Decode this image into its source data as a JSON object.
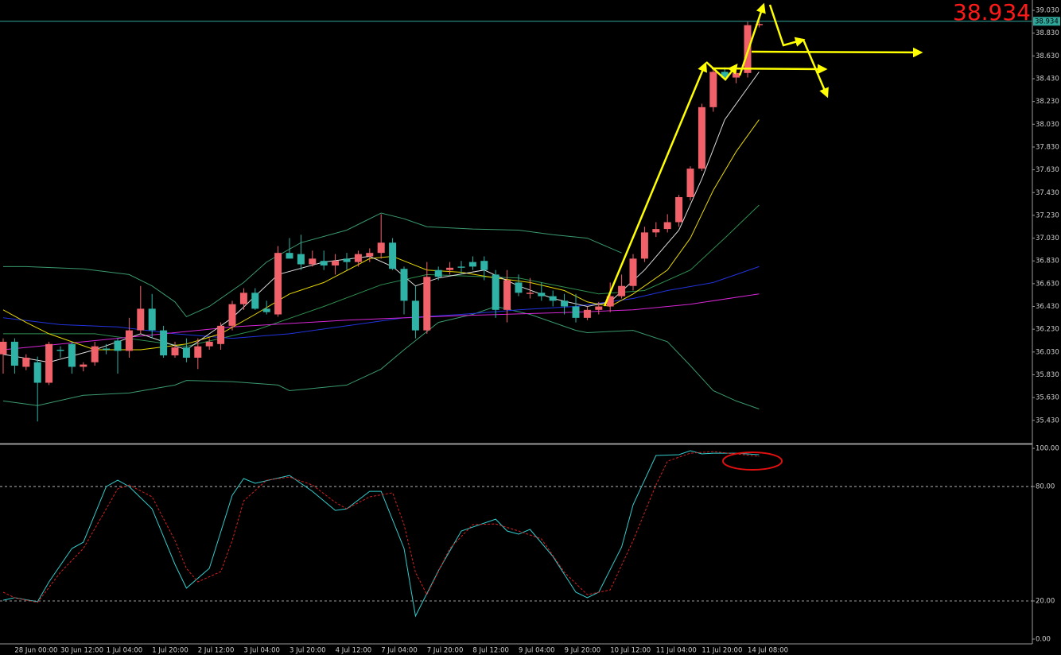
{
  "chart_data": [
    {
      "type": "candlestick",
      "categories": [
        null,
        "28 Jun 00:00",
        null,
        null,
        null,
        "30 Jun 12:00",
        null,
        null,
        null,
        "1 Jul 04:00",
        null,
        null,
        null,
        "1 Jul 20:00",
        null,
        null,
        null,
        "2 Jul 12:00",
        null,
        null,
        null,
        "3 Jul 04:00",
        null,
        null,
        null,
        "3 Jul 20:00",
        null,
        null,
        null,
        "4 Jul 12:00",
        null,
        null,
        null,
        "7 Jul 04:00",
        null,
        null,
        null,
        "7 Jul 20:00",
        null,
        null,
        null,
        "8 Jul 12:00",
        null,
        null,
        null,
        "9 Jul 04:00",
        null,
        null,
        null,
        "9 Jul 20:00",
        null,
        null,
        null,
        "10 Jul 12:00",
        null,
        null,
        null,
        "11 Jul 04:00",
        null,
        null,
        null,
        "11 Jul 20:00",
        null,
        null,
        null,
        "14 Jul 08:00",
        null
      ],
      "open": [
        36.01,
        36.12,
        35.9,
        35.94,
        35.76,
        36.05,
        36.1,
        35.9,
        35.94,
        36.06,
        36.13,
        36.04,
        36.22,
        36.41,
        36.22,
        36.0,
        36.07,
        35.98,
        36.08,
        36.1,
        36.26,
        36.45,
        36.55,
        36.41,
        36.36,
        36.9,
        36.89,
        36.8,
        36.83,
        36.79,
        36.85,
        36.82,
        36.87,
        36.9,
        36.99,
        36.76,
        36.48,
        36.22,
        36.75,
        36.75,
        36.78,
        36.82,
        36.83,
        36.71,
        36.4,
        36.64,
        36.54,
        36.55,
        36.52,
        36.48,
        36.43,
        36.33,
        36.4,
        36.43,
        36.52,
        36.61,
        36.85,
        37.08,
        37.11,
        37.17,
        37.39,
        37.64,
        38.18,
        38.49,
        38.44,
        38.48,
        38.9
      ],
      "high": [
        36.15,
        36.15,
        36.01,
        35.99,
        36.12,
        36.08,
        36.12,
        35.94,
        36.12,
        36.1,
        36.15,
        36.33,
        36.61,
        36.54,
        36.26,
        36.12,
        36.15,
        36.15,
        36.15,
        36.29,
        36.48,
        36.59,
        36.59,
        36.48,
        36.96,
        37.03,
        37.06,
        36.92,
        36.92,
        36.89,
        36.9,
        36.92,
        36.94,
        37.24,
        37.03,
        36.78,
        36.61,
        36.82,
        36.78,
        36.82,
        36.83,
        36.87,
        36.87,
        36.75,
        36.75,
        36.71,
        36.68,
        36.64,
        36.57,
        36.54,
        36.54,
        36.43,
        36.47,
        36.64,
        36.71,
        36.89,
        37.13,
        37.17,
        37.24,
        37.41,
        37.66,
        38.21,
        38.53,
        38.53,
        38.51,
        38.93,
        38.93
      ],
      "low": [
        35.84,
        35.84,
        35.87,
        35.42,
        35.74,
        35.98,
        35.84,
        35.86,
        35.91,
        36.01,
        35.84,
        35.98,
        36.19,
        36.15,
        35.98,
        35.98,
        35.94,
        35.88,
        36.05,
        36.05,
        36.22,
        36.4,
        36.4,
        36.36,
        36.34,
        36.85,
        36.75,
        36.78,
        36.75,
        36.71,
        36.75,
        36.78,
        36.82,
        36.85,
        36.75,
        36.36,
        36.15,
        36.19,
        36.66,
        36.71,
        36.71,
        36.75,
        36.66,
        36.33,
        36.29,
        36.52,
        36.5,
        36.48,
        36.43,
        36.36,
        36.29,
        36.31,
        36.36,
        36.38,
        36.5,
        36.57,
        36.82,
        37.04,
        37.08,
        37.13,
        37.36,
        37.62,
        38.14,
        38.42,
        38.39,
        38.44,
        38.88
      ],
      "close": [
        36.12,
        35.91,
        35.98,
        35.76,
        36.1,
        36.04,
        35.9,
        35.92,
        36.08,
        36.05,
        36.04,
        36.22,
        36.41,
        36.22,
        36.0,
        36.07,
        35.98,
        36.08,
        36.12,
        36.26,
        36.45,
        36.55,
        36.41,
        36.38,
        36.9,
        36.85,
        36.8,
        36.85,
        36.79,
        36.83,
        36.82,
        36.89,
        36.9,
        36.99,
        36.76,
        36.48,
        36.22,
        36.69,
        36.69,
        36.77,
        36.77,
        36.78,
        36.75,
        36.4,
        36.66,
        36.55,
        36.55,
        36.52,
        36.48,
        36.43,
        36.33,
        36.4,
        36.43,
        36.52,
        36.61,
        36.85,
        37.08,
        37.11,
        37.17,
        37.39,
        37.64,
        38.18,
        38.49,
        38.44,
        38.48,
        38.9,
        38.91
      ],
      "up_color": "#f0616a",
      "down_color": "#2fb3a6",
      "overlays": [
        {
          "color": "#3a9a6e",
          "x": [
            0,
            2,
            7,
            11,
            13,
            15,
            16,
            18,
            21,
            23,
            26,
            30,
            33,
            35,
            37,
            41,
            45,
            48,
            51,
            54
          ],
          "values": [
            36.78,
            36.78,
            36.76,
            36.71,
            36.61,
            36.47,
            36.34,
            36.43,
            36.64,
            36.82,
            36.99,
            37.1,
            37.25,
            37.2,
            37.13,
            37.11,
            37.1,
            37.06,
            37.03,
            36.9
          ]
        },
        {
          "color": "#3a9a6e",
          "x": [
            0,
            3,
            7,
            11,
            15,
            16,
            20,
            24,
            25,
            30,
            33,
            35,
            38,
            41,
            43,
            46,
            50,
            51,
            55,
            58,
            60,
            62,
            64,
            66
          ],
          "values": [
            35.6,
            35.56,
            35.65,
            35.67,
            35.74,
            35.78,
            35.77,
            35.74,
            35.69,
            35.74,
            35.88,
            36.05,
            36.29,
            36.36,
            36.43,
            36.36,
            36.22,
            36.2,
            36.22,
            36.12,
            35.91,
            35.69,
            35.6,
            35.53
          ]
        },
        {
          "color": "#2f8f4f",
          "x": [
            0,
            8,
            16,
            22,
            28,
            33,
            37,
            45,
            52,
            56,
            60,
            63,
            66
          ],
          "values": [
            36.19,
            36.19,
            36.08,
            36.22,
            36.43,
            36.62,
            36.71,
            36.68,
            36.54,
            36.57,
            36.75,
            37.03,
            37.32
          ]
        },
        {
          "color": "#2233dd",
          "x": [
            0,
            5,
            10,
            15,
            20,
            25,
            30,
            35,
            40,
            45,
            50,
            55,
            58,
            62,
            66
          ],
          "values": [
            36.33,
            36.27,
            36.25,
            36.19,
            36.15,
            36.19,
            36.26,
            36.33,
            36.36,
            36.4,
            36.43,
            36.5,
            36.57,
            36.64,
            36.78
          ]
        },
        {
          "color": "#d626d6",
          "x": [
            0,
            10,
            20,
            30,
            40,
            50,
            55,
            60,
            66
          ],
          "values": [
            36.05,
            36.15,
            36.25,
            36.31,
            36.35,
            36.38,
            36.4,
            36.45,
            36.54
          ]
        },
        {
          "color": "#e8d800",
          "x": [
            0,
            2,
            4,
            8,
            12,
            16,
            19,
            22,
            25,
            28,
            32,
            34,
            37,
            40,
            43,
            46,
            49,
            51,
            53,
            55,
            58,
            60,
            62,
            64,
            66
          ],
          "values": [
            36.4,
            36.29,
            36.19,
            36.05,
            36.05,
            36.1,
            36.19,
            36.36,
            36.54,
            36.64,
            36.85,
            36.87,
            36.75,
            36.73,
            36.68,
            36.64,
            36.57,
            36.47,
            36.43,
            36.54,
            36.75,
            37.03,
            37.45,
            37.79,
            38.07
          ]
        },
        {
          "color": "#dddddd",
          "x": [
            0,
            4,
            8,
            12,
            16,
            20,
            24,
            28,
            32,
            34,
            36,
            38,
            42,
            45,
            48,
            51,
            53,
            56,
            59,
            61,
            63,
            65,
            66
          ],
          "values": [
            36.01,
            35.94,
            36.05,
            36.19,
            36.05,
            36.33,
            36.71,
            36.82,
            36.87,
            36.78,
            36.61,
            36.68,
            36.75,
            36.61,
            36.5,
            36.43,
            36.47,
            36.75,
            37.1,
            37.55,
            38.07,
            38.35,
            38.49
          ]
        }
      ],
      "last_price": 38.934,
      "last_price_color": "#ff1a1a",
      "ylim": [
        35.233,
        39.121
      ],
      "yticks": [
        {
          "value": 39.03,
          "label": "39.030"
        },
        {
          "value": 38.83,
          "label": "38.830"
        },
        {
          "value": 38.63,
          "label": "38.630"
        },
        {
          "value": 38.43,
          "label": "38.430"
        },
        {
          "value": 38.23,
          "label": "38.230"
        },
        {
          "value": 38.03,
          "label": "38.030"
        },
        {
          "value": 37.83,
          "label": "37.830"
        },
        {
          "value": 37.63,
          "label": "37.630"
        },
        {
          "value": 37.43,
          "label": "37.430"
        },
        {
          "value": 37.23,
          "label": "37.230"
        },
        {
          "value": 37.03,
          "label": "37.030"
        },
        {
          "value": 36.83,
          "label": "36.830"
        },
        {
          "value": 36.63,
          "label": "36.630"
        },
        {
          "value": 36.43,
          "label": "36.430"
        },
        {
          "value": 36.23,
          "label": "36.230"
        },
        {
          "value": 36.03,
          "label": "36.030"
        },
        {
          "value": 35.83,
          "label": "35.830"
        },
        {
          "value": 35.63,
          "label": "35.630"
        },
        {
          "value": 35.43,
          "label": "35.430"
        }
      ]
    },
    {
      "type": "line",
      "series": [
        {
          "color": "#33cccc",
          "x": [
            0,
            1,
            3,
            4,
            6,
            7,
            9,
            10,
            11,
            13,
            15,
            16,
            18,
            20,
            21,
            22,
            25,
            27,
            29,
            30,
            32,
            33,
            35,
            36,
            38,
            40,
            43,
            44,
            45,
            46,
            48,
            50,
            51,
            52,
            54,
            55,
            57,
            59,
            60,
            61,
            62,
            64,
            66
          ],
          "values": [
            20.4,
            21.7,
            19.6,
            30,
            47.5,
            50.8,
            80,
            83.3,
            80,
            68.3,
            39.2,
            26.7,
            37.1,
            75.4,
            84.2,
            81.7,
            85.8,
            77.5,
            67.5,
            68.3,
            77.5,
            77.5,
            47.5,
            12.1,
            35.8,
            56.7,
            62.9,
            56.7,
            55,
            57.5,
            43.3,
            24.6,
            21.7,
            24.6,
            48.3,
            70.4,
            96.3,
            96.7,
            98.8,
            97.1,
            97.5,
            97.5,
            96.7
          ]
        },
        {
          "color": "#d42020",
          "dashed": true,
          "x": [
            0,
            1,
            3,
            5,
            7,
            9,
            10,
            11,
            13,
            15,
            16,
            17,
            19,
            20,
            21,
            23,
            25,
            27,
            29,
            30,
            32,
            34,
            35,
            36,
            37,
            39,
            41,
            43,
            45,
            47,
            49,
            51,
            53,
            55,
            57,
            58,
            60,
            62,
            64,
            66
          ],
          "values": [
            24.6,
            21.7,
            19.2,
            35,
            47.5,
            68.3,
            78.8,
            80.8,
            74.6,
            51.7,
            37.1,
            30,
            35.4,
            51.7,
            72.5,
            83.3,
            85,
            80.8,
            71.7,
            68.3,
            74.6,
            76.7,
            60,
            35,
            23.3,
            47.5,
            60,
            60.4,
            56.7,
            52.5,
            35,
            23.3,
            25.8,
            51.7,
            80.8,
            93.3,
            97.5,
            98.3,
            97.1,
            95.8
          ]
        }
      ],
      "levels": [
        80,
        20
      ],
      "ylim": [
        -2.5,
        101.7
      ],
      "yticks": [
        {
          "value": 100,
          "label": "100.00"
        },
        {
          "value": 80,
          "label": "80.00"
        },
        {
          "value": 20,
          "label": "20.00"
        },
        {
          "value": 0,
          "label": "0.00"
        }
      ]
    }
  ]
}
